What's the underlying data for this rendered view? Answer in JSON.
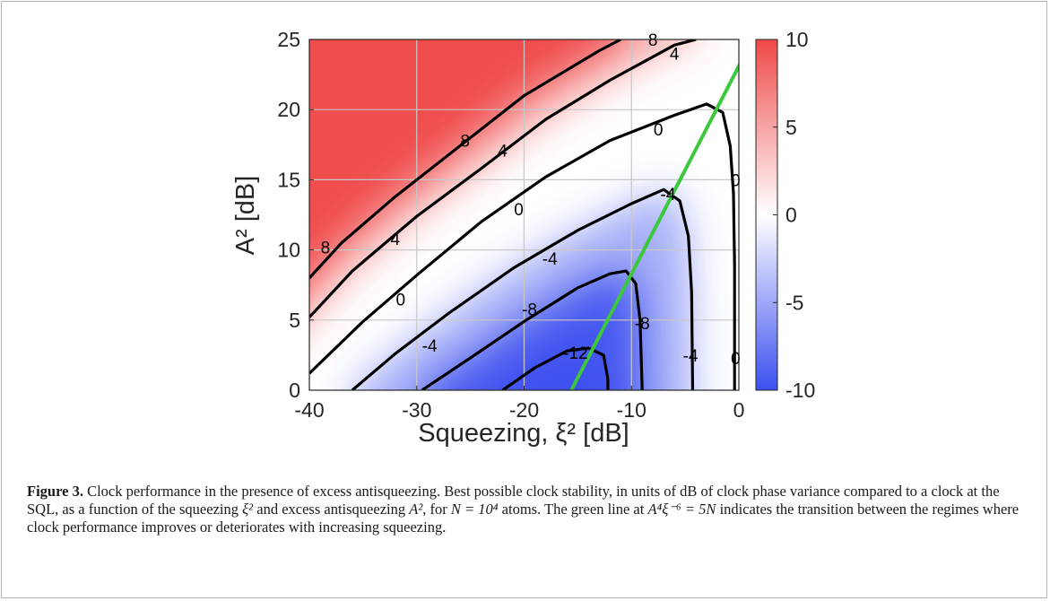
{
  "figure": {
    "chart_data": {
      "type": "heatmap",
      "xlabel": "Squeezing, ξ² [dB]",
      "ylabel": "A² [dB]",
      "xlim": [
        -40,
        0
      ],
      "ylim": [
        0,
        25
      ],
      "x_ticks": [
        "-40",
        "-30",
        "-20",
        "-10",
        "0"
      ],
      "y_ticks": [
        "0",
        "5",
        "10",
        "15",
        "20",
        "25"
      ],
      "grid": true,
      "colorbar": {
        "range": [
          -10,
          10
        ],
        "ticks": [
          "10",
          "5",
          "0",
          "-5",
          "-10"
        ],
        "colors": {
          "high": "#f04848",
          "mid": "#ffffff",
          "low": "#3c50f0"
        }
      },
      "contours": [
        {
          "level": 8,
          "label": "8",
          "points": [
            [
              -40,
              8
            ],
            [
              -37,
              10.5
            ],
            [
              -32,
              13.8
            ],
            [
              -26,
              17.4
            ],
            [
              -20,
              21
            ],
            [
              -13,
              24.2
            ],
            [
              -11,
              25
            ]
          ],
          "label_positions": [
            [
              -38.5,
              10.2
            ],
            [
              -25.5,
              17.8
            ],
            [
              -8,
              25
            ]
          ]
        },
        {
          "level": 4,
          "label": "4",
          "points": [
            [
              -40,
              5.2
            ],
            [
              -36,
              8.5
            ],
            [
              -30,
              12.4
            ],
            [
              -24,
              15.8
            ],
            [
              -18,
              19.3
            ],
            [
              -12,
              22.1
            ],
            [
              -6,
              24.6
            ],
            [
              -4,
              25
            ]
          ],
          "label_positions": [
            [
              -32,
              10.8
            ],
            [
              -22,
              17.1
            ],
            [
              -6,
              24
            ]
          ]
        },
        {
          "level": 0,
          "label": "0",
          "points": [
            [
              -40,
              1.2
            ],
            [
              -35,
              4.9
            ],
            [
              -30,
              8.2
            ],
            [
              -24,
              12
            ],
            [
              -18,
              15.2
            ],
            [
              -12,
              17.8
            ],
            [
              -6,
              19.6
            ],
            [
              -3,
              20.4
            ],
            [
              -1.5,
              19.8
            ],
            [
              -0.8,
              17.4
            ],
            [
              -0.5,
              14
            ],
            [
              -0.4,
              9
            ],
            [
              -0.4,
              4
            ],
            [
              -0.4,
              0
            ]
          ],
          "label_positions": [
            [
              -31.5,
              6.5
            ],
            [
              -20.5,
              12.9
            ],
            [
              -7.5,
              18.6
            ],
            [
              -0.3,
              15
            ],
            [
              -0.3,
              2.3
            ]
          ]
        },
        {
          "level": -4,
          "label": "-4",
          "points": [
            [
              -36,
              0
            ],
            [
              -32,
              2.6
            ],
            [
              -27,
              5.5
            ],
            [
              -21,
              8.7
            ],
            [
              -15,
              11.4
            ],
            [
              -10,
              13.3
            ],
            [
              -7,
              14.3
            ],
            [
              -5.5,
              13.5
            ],
            [
              -4.7,
              11
            ],
            [
              -4.4,
              7
            ],
            [
              -4.3,
              0
            ]
          ],
          "label_positions": [
            [
              -28.8,
              3.2
            ],
            [
              -17.6,
              9.4
            ],
            [
              -6.6,
              14
            ],
            [
              -4.5,
              2.5
            ]
          ]
        },
        {
          "level": -8,
          "label": "-8",
          "points": [
            [
              -29.5,
              0
            ],
            [
              -25,
              2.3
            ],
            [
              -20,
              4.9
            ],
            [
              -15,
              7.3
            ],
            [
              -12,
              8.3
            ],
            [
              -10.5,
              8.5
            ],
            [
              -9.6,
              7.6
            ],
            [
              -9.2,
              5
            ],
            [
              -9,
              0
            ]
          ],
          "label_positions": [
            [
              -19.5,
              5.8
            ],
            [
              -9,
              4.8
            ]
          ]
        },
        {
          "level": -12,
          "label": "-12",
          "points": [
            [
              -22,
              0
            ],
            [
              -19,
              1.6
            ],
            [
              -16,
              2.8
            ],
            [
              -14,
              3
            ],
            [
              -12.6,
              2.5
            ],
            [
              -12.2,
              0.8
            ],
            [
              -12.2,
              0
            ]
          ],
          "label_positions": [
            [
              -15.2,
              2.7
            ]
          ]
        }
      ],
      "green_line": {
        "label_formula": "A⁴ξ⁻⁶ = 5N",
        "points": [
          [
            -15.6,
            0
          ],
          [
            0.2,
            23.4
          ]
        ],
        "color": "#3cc83c"
      }
    },
    "caption": {
      "label": "Figure 3.",
      "text1": " Clock performance in the presence of excess antisqueezing. Best possible clock stability, in units of dB of clock phase variance compared to a clock at the SQL, as a function of the squeezing ",
      "math_xi": "ξ²",
      "text2": " and excess antisqueezing ",
      "math_a": "A²",
      "text3": ", for ",
      "math_n": "N = 10⁴",
      "text4": " atoms. The green line at ",
      "math_line": "A⁴ξ⁻⁶ = 5N",
      "text5": " indicates the transition between the regimes where clock performance improves or deteriorates with increasing squeezing."
    }
  }
}
